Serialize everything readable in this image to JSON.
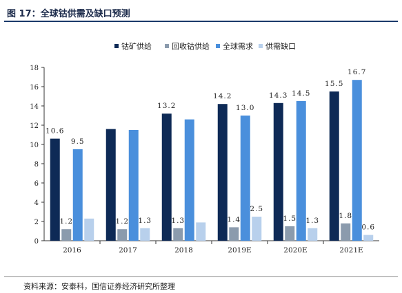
{
  "header": {
    "title": "图 17：全球钴供需及缺口预测"
  },
  "source": "资料来源：安泰科，国信证券经济研究所整理",
  "chart_data": {
    "type": "bar",
    "title": "",
    "xlabel": "",
    "ylabel": "",
    "categories": [
      "2016",
      "2017",
      "2018",
      "2019E",
      "2020E",
      "2021E"
    ],
    "ylim": [
      0,
      18
    ],
    "yticks": [
      0,
      2,
      4,
      6,
      8,
      10,
      12,
      14,
      16,
      18
    ],
    "legend_position": "top",
    "grid": false,
    "series": [
      {
        "name": "钴矿供给",
        "color": "#0e2a56",
        "values": [
          10.6,
          11.6,
          13.2,
          14.2,
          14.3,
          15.5
        ],
        "labels": [
          "10.6",
          "",
          "13.2",
          "14.2",
          "14.3",
          "15.5"
        ]
      },
      {
        "name": "回收钴供给",
        "color": "#8b9bad",
        "values": [
          1.2,
          1.2,
          1.3,
          1.4,
          1.5,
          1.8
        ],
        "labels": [
          "1.2",
          "1.2",
          "1.3",
          "1.4",
          "1.5",
          "1.8"
        ]
      },
      {
        "name": "全球需求",
        "color": "#4a8fdc",
        "values": [
          9.5,
          11.5,
          12.6,
          13.0,
          14.5,
          16.7
        ],
        "labels": [
          "9.5",
          "",
          "",
          "13.0",
          "14.5",
          "16.7"
        ]
      },
      {
        "name": "供需缺口",
        "color": "#b8d0ec",
        "values": [
          2.3,
          1.3,
          1.9,
          2.5,
          1.3,
          0.6
        ],
        "labels": [
          "",
          "1.3",
          "",
          "2.5",
          "1.3",
          "0.6"
        ]
      }
    ]
  }
}
